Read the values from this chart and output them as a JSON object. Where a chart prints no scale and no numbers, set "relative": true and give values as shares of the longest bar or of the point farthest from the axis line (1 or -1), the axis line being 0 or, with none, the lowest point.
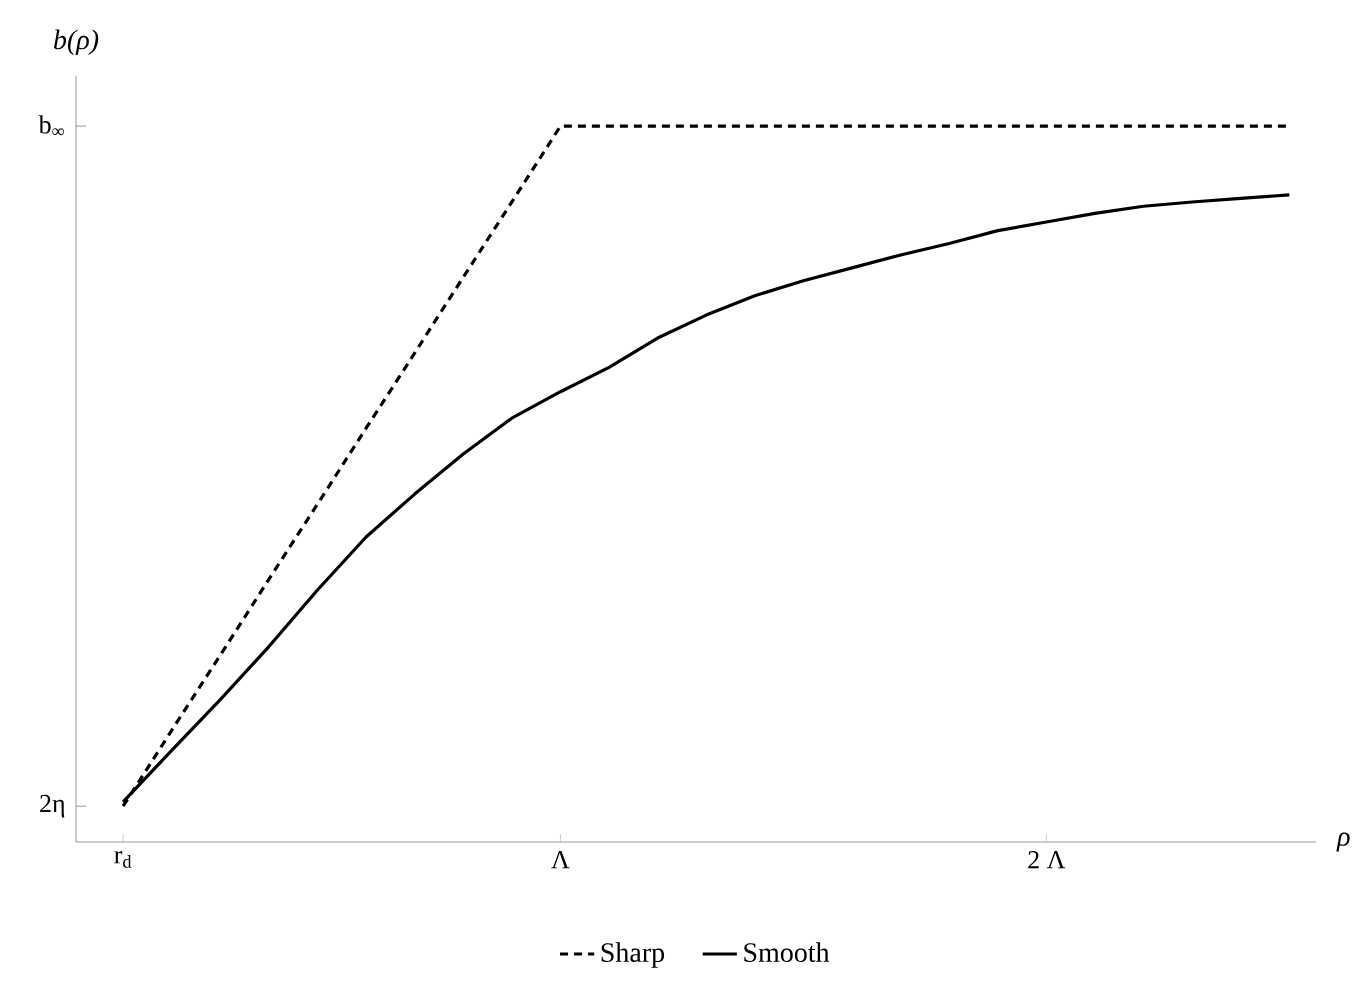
{
  "chart_data": {
    "type": "line",
    "xlabel": "ρ",
    "ylabel": "b(ρ)",
    "relative": true,
    "categories": [
      "r$_{d}$",
      null,
      null,
      null,
      null,
      null,
      null,
      null,
      null,
      "Λ",
      null,
      null,
      null,
      null,
      null,
      null,
      null,
      null,
      null,
      "2 Λ",
      null,
      null,
      null,
      null,
      null
    ],
    "annotations": [
      "2η",
      "b$_{∞}$"
    ],
    "legend": "bottom",
    "marker": "none",
    "series": [
      {
        "name": "Sharp",
        "color": "#000000",
        "line_style": "dashed",
        "values": [
          0.05,
          0.156,
          0.261,
          0.367,
          0.472,
          0.578,
          0.683,
          0.789,
          0.894,
          1,
          1,
          1,
          1,
          1,
          1,
          1,
          1,
          1,
          1,
          1,
          1,
          1,
          1,
          1,
          1
        ]
      },
      {
        "name": "Smooth",
        "color": "#000000",
        "line_style": "solid",
        "values": [
          0.056,
          0.128,
          0.199,
          0.273,
          0.352,
          0.426,
          0.486,
          0.542,
          0.592,
          0.629,
          0.663,
          0.704,
          0.736,
          0.763,
          0.784,
          0.802,
          0.82,
          0.836,
          0.854,
          0.866,
          0.878,
          0.888,
          0.894,
          0.899,
          0.904
        ]
      }
    ]
  }
}
